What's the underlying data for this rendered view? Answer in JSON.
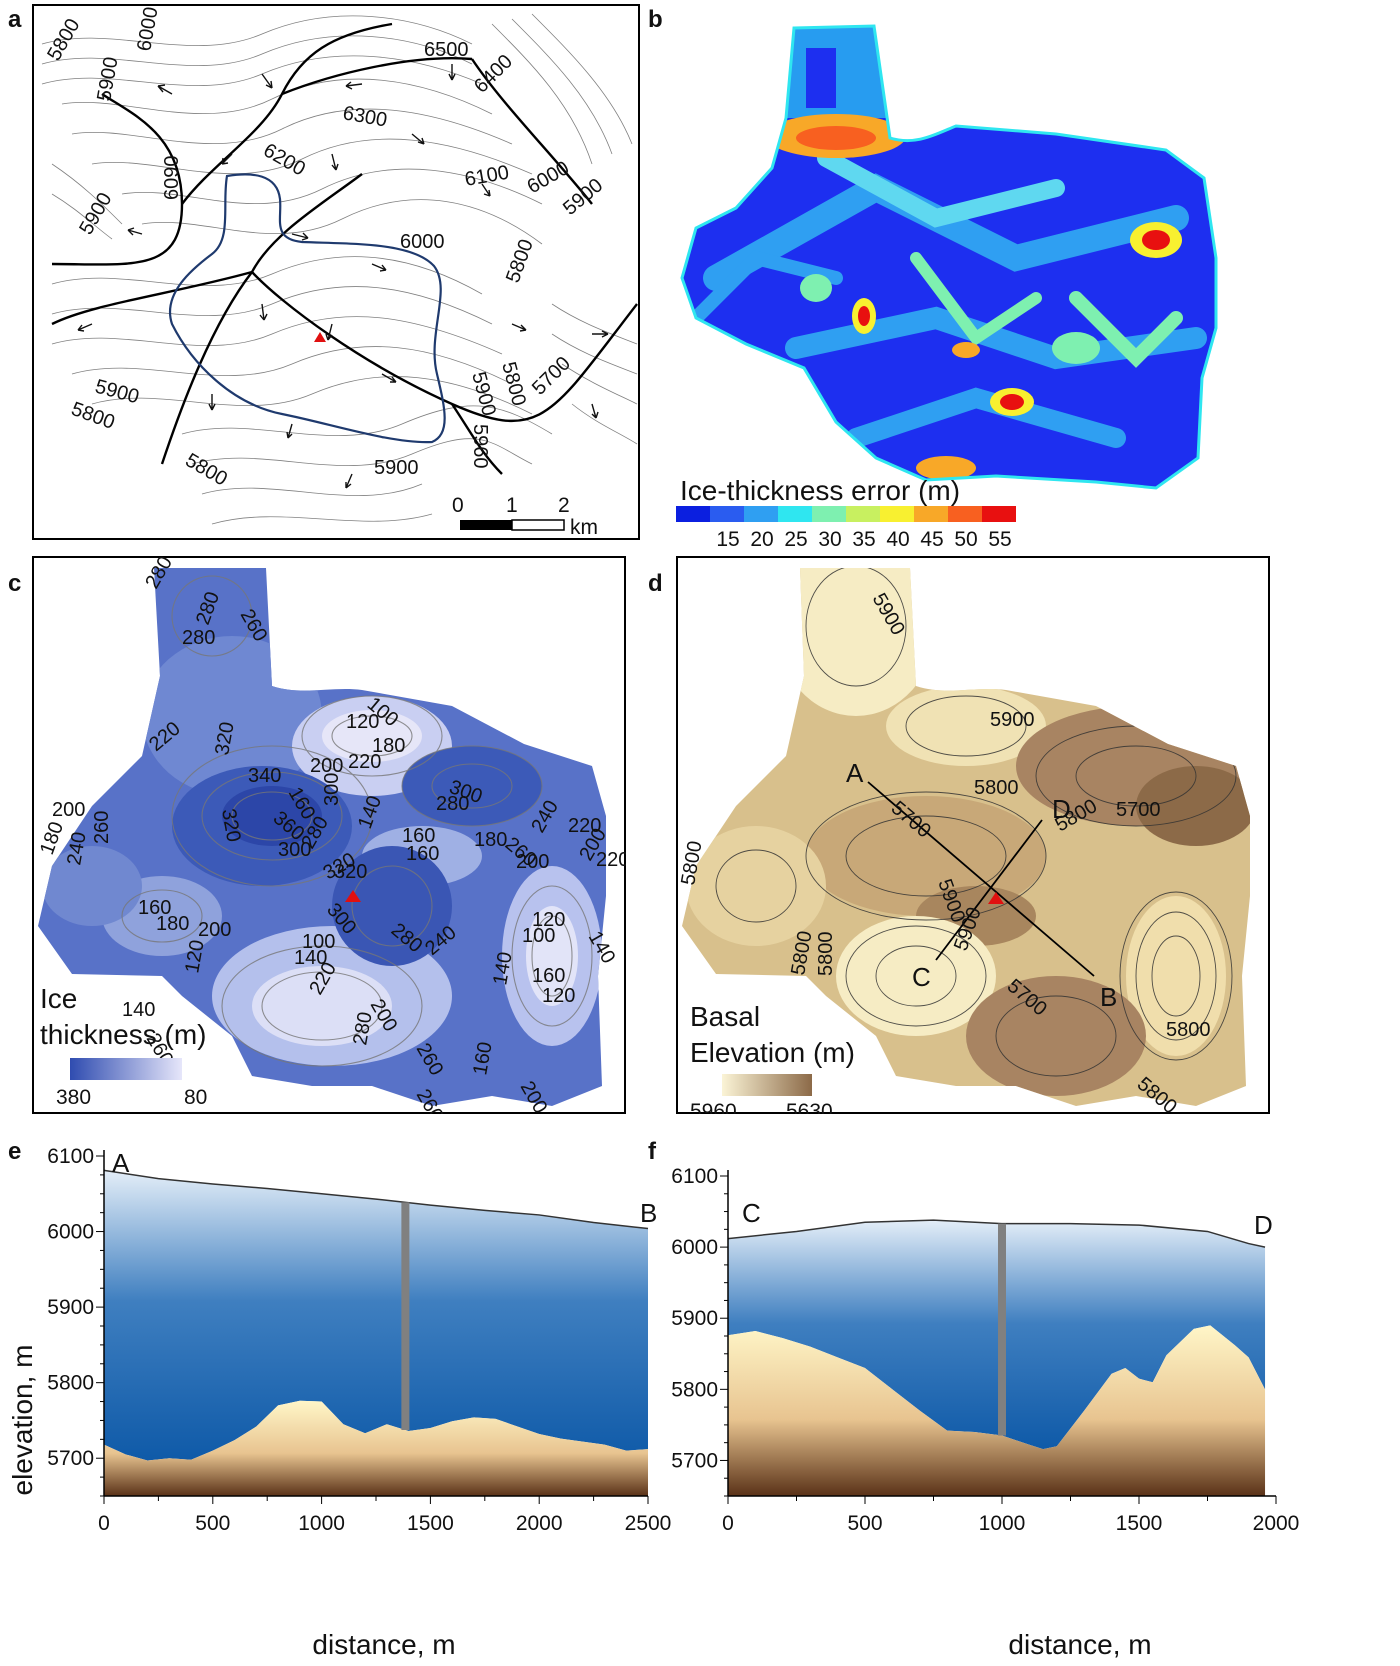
{
  "panels": {
    "a": {
      "letter": "a",
      "contour_labels": [
        "5800",
        "6000",
        "5900",
        "6500",
        "6400",
        "6300",
        "6200",
        "6090",
        "6100",
        "6000",
        "5900",
        "5900",
        "6000",
        "5800",
        "5800",
        "5900",
        "5700",
        "5900",
        "5800",
        "5960",
        "5800",
        "5900"
      ],
      "scale_ticks": [
        "0",
        "1",
        "2"
      ],
      "scale_unit": "km"
    },
    "b": {
      "letter": "b",
      "legend_title": "Ice-thickness error (m)",
      "legend_ticks": [
        "15",
        "20",
        "25",
        "30",
        "35",
        "40",
        "45",
        "50",
        "55"
      ],
      "legend_colors": [
        "#0b1fe0",
        "#2a5cf0",
        "#2f9ff2",
        "#2fe6f0",
        "#7ef0b0",
        "#c8f060",
        "#f8f030",
        "#f8a828",
        "#f86020",
        "#e81010"
      ]
    },
    "c": {
      "letter": "c",
      "legend_title_line1": "Ice",
      "legend_title_line2": "thickness (m)",
      "legend_min": "380",
      "legend_max": "80",
      "contour_labels": [
        "280",
        "260",
        "280",
        "280",
        "100",
        "120",
        "180",
        "160",
        "200",
        "220",
        "220",
        "320",
        "340",
        "360",
        "320",
        "300",
        "200",
        "240",
        "260",
        "300",
        "280",
        "320",
        "300",
        "280",
        "260",
        "240",
        "220",
        "200",
        "140",
        "160",
        "160",
        "180",
        "200",
        "220",
        "240",
        "320",
        "300",
        "280",
        "180",
        "160",
        "180",
        "200",
        "140",
        "120",
        "100",
        "100",
        "140",
        "160",
        "120",
        "140",
        "220",
        "260",
        "280",
        "200",
        "260",
        "160",
        "200",
        "260",
        "120",
        "140"
      ]
    },
    "d": {
      "letter": "d",
      "legend_title_line1": "Basal",
      "legend_title_line2": "Elevation (m)",
      "legend_min": "5960",
      "legend_max": "5630",
      "contour_labels": [
        "5900",
        "5900",
        "5800",
        "5700",
        "5800",
        "5700",
        "5800",
        "5900",
        "5800",
        "5800",
        "5900",
        "5700",
        "5800",
        "5800"
      ],
      "point_labels": {
        "A": "A",
        "B": "B",
        "C": "C",
        "D": "D"
      }
    },
    "e": {
      "letter": "e"
    },
    "f": {
      "letter": "f"
    }
  },
  "chart_data": [
    {
      "type": "area",
      "panel": "e",
      "xlabel": "distance, m",
      "ylabel": "elevation, m",
      "xlim": [
        0,
        2500
      ],
      "ylim": [
        5650,
        6100
      ],
      "x_ticks": [
        "0",
        "500",
        "1000",
        "1500",
        "2000",
        "2500"
      ],
      "y_ticks": [
        "5700",
        "5800",
        "5900",
        "6000",
        "6100"
      ],
      "start_label": "A",
      "end_label": "B",
      "borehole_x": 1385,
      "surface": {
        "x": [
          0,
          250,
          500,
          750,
          1000,
          1250,
          1500,
          1750,
          2000,
          2250,
          2500
        ],
        "y": [
          6081,
          6070,
          6063,
          6057,
          6050,
          6043,
          6035,
          6028,
          6022,
          6012,
          6004
        ]
      },
      "bed": {
        "x": [
          0,
          100,
          200,
          300,
          400,
          500,
          600,
          700,
          800,
          900,
          1000,
          1100,
          1200,
          1300,
          1400,
          1500,
          1600,
          1700,
          1800,
          1900,
          2000,
          2100,
          2200,
          2300,
          2400,
          2500
        ],
        "y": [
          5718,
          5705,
          5697,
          5700,
          5698,
          5710,
          5724,
          5742,
          5770,
          5776,
          5775,
          5745,
          5733,
          5745,
          5736,
          5740,
          5749,
          5754,
          5752,
          5742,
          5732,
          5726,
          5722,
          5718,
          5710,
          5712
        ]
      }
    },
    {
      "type": "area",
      "panel": "f",
      "xlabel": "distance, m",
      "ylabel": "",
      "xlim": [
        0,
        2000
      ],
      "ylim": [
        5650,
        6100
      ],
      "x_ticks": [
        "0",
        "500",
        "1000",
        "1500",
        "2000"
      ],
      "y_ticks": [
        "5700",
        "5800",
        "5900",
        "6000",
        "6100"
      ],
      "start_label": "C",
      "end_label": "D",
      "borehole_x": 1000,
      "surface": {
        "x": [
          0,
          250,
          500,
          750,
          1000,
          1250,
          1500,
          1750,
          1900,
          1960
        ],
        "y": [
          6012,
          6022,
          6035,
          6038,
          6033,
          6033,
          6031,
          6022,
          6005,
          6000
        ]
      },
      "bed": {
        "x": [
          0,
          100,
          200,
          300,
          400,
          500,
          600,
          700,
          800,
          900,
          1000,
          1100,
          1150,
          1200,
          1300,
          1400,
          1450,
          1500,
          1550,
          1600,
          1700,
          1760,
          1850,
          1900,
          1960
        ],
        "y": [
          5876,
          5882,
          5872,
          5860,
          5845,
          5830,
          5800,
          5770,
          5742,
          5740,
          5735,
          5722,
          5716,
          5720,
          5770,
          5822,
          5830,
          5815,
          5810,
          5848,
          5885,
          5890,
          5862,
          5845,
          5800
        ]
      }
    }
  ]
}
